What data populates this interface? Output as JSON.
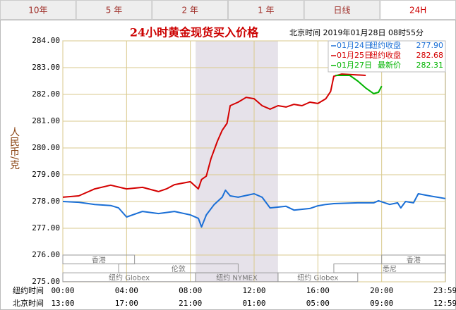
{
  "tabs": [
    "10年",
    "5 年",
    "2 年",
    "1 年",
    "日线",
    "24H"
  ],
  "active_tab": 5,
  "chart_data": {
    "type": "line",
    "title": "24小时黄金现货买入价格",
    "subtitle": "北京时间  2019年01月28日 08时55分",
    "y_label": "人民币/克",
    "x_label": "纽约时间",
    "x2_label": "北京时间",
    "ylim": [
      275,
      284
    ],
    "yticks": [
      {
        "value": 284,
        "label": "284.00"
      },
      {
        "value": 283,
        "label": "283.00"
      },
      {
        "value": 282,
        "label": "282.00"
      },
      {
        "value": 281,
        "label": "281.00"
      },
      {
        "value": 280,
        "label": "280.00"
      },
      {
        "value": 279,
        "label": "279.00"
      },
      {
        "value": 278,
        "label": "278.00"
      },
      {
        "value": 277,
        "label": "277.00"
      },
      {
        "value": 276,
        "label": "276.00"
      },
      {
        "value": 275,
        "label": "275.00"
      }
    ],
    "xlim": [
      0,
      24
    ],
    "xticks": [
      {
        "value": 0,
        "label": "00:00"
      },
      {
        "value": 4,
        "label": "04:00"
      },
      {
        "value": 8,
        "label": "08:00"
      },
      {
        "value": 12,
        "label": "12:00"
      },
      {
        "value": 16,
        "label": "16:00"
      },
      {
        "value": 20,
        "label": "20:00"
      },
      {
        "value": 23.983,
        "label": "23:59"
      }
    ],
    "x2ticks": [
      {
        "value": 0,
        "label": "13:00"
      },
      {
        "value": 4,
        "label": "17:00"
      },
      {
        "value": 8,
        "label": "21:00"
      },
      {
        "value": 12,
        "label": "01:00"
      },
      {
        "value": 16,
        "label": "05:00"
      },
      {
        "value": 20,
        "label": "09:00"
      },
      {
        "value": 23.983,
        "label": "12:59"
      }
    ],
    "grid": true,
    "sessions": [
      [
        {
          "label": "香港",
          "start": 0,
          "end": 4.5
        },
        {
          "label": "香港",
          "start": 20,
          "end": 24
        }
      ],
      [
        {
          "label": "伦敦",
          "start": 3.5,
          "end": 11
        },
        {
          "label": "悉尼",
          "start": 17,
          "end": 24
        }
      ],
      [
        {
          "label": "纽约 Globex",
          "start": 0,
          "end": 8.33
        },
        {
          "label": "纽约 NYMEX",
          "start": 8.33,
          "end": 13.5
        },
        {
          "label": "纽约 Globex",
          "start": 13.5,
          "end": 18.5
        }
      ]
    ],
    "series": [
      {
        "name": "01月24日",
        "note": "纽约收盘",
        "legend_value": {
          "value": 277.9,
          "label": "277.90"
        },
        "color": "#1a6fd6",
        "x": [
          0,
          1,
          2,
          3,
          3.5,
          4,
          5,
          6,
          7,
          8,
          8.5,
          8.7,
          9,
          9.5,
          10,
          10.2,
          10.5,
          11,
          12,
          12.5,
          13,
          14,
          14.5,
          15.5,
          16,
          16.5,
          17,
          18.5,
          19.5,
          19.8,
          20.5,
          21,
          21.2,
          21.5,
          22,
          22.3,
          23,
          24
        ],
        "values": [
          278.0,
          277.97,
          277.89,
          277.85,
          277.76,
          277.42,
          277.63,
          277.55,
          277.63,
          277.5,
          277.37,
          277.05,
          277.5,
          277.89,
          278.16,
          278.42,
          278.21,
          278.16,
          278.29,
          278.16,
          277.76,
          277.82,
          277.68,
          277.74,
          277.84,
          277.89,
          277.92,
          277.95,
          277.95,
          278.03,
          277.89,
          277.95,
          277.76,
          278.0,
          277.95,
          278.29,
          278.21,
          278.11
        ]
      },
      {
        "name": "01月25日",
        "note": "纽约收盘",
        "legend_value": {
          "value": 282.68,
          "label": "282.68"
        },
        "color": "#d40000",
        "x": [
          0,
          1,
          2,
          3,
          4,
          5,
          6,
          6.5,
          7,
          8,
          8.5,
          8.7,
          9,
          9.3,
          9.7,
          10,
          10.3,
          10.5,
          11,
          11.5,
          12,
          12.5,
          13,
          13.5,
          14,
          14.5,
          15,
          15.5,
          16,
          16.5,
          16.8,
          17,
          17.5,
          19
        ],
        "values": [
          278.16,
          278.21,
          278.47,
          278.61,
          278.47,
          278.53,
          278.37,
          278.47,
          278.63,
          278.74,
          278.47,
          278.82,
          278.95,
          279.61,
          280.26,
          280.66,
          280.92,
          281.58,
          281.71,
          281.89,
          281.84,
          281.58,
          281.45,
          281.58,
          281.53,
          281.63,
          281.58,
          281.71,
          281.66,
          281.84,
          282.11,
          282.68,
          282.76,
          282.71
        ]
      },
      {
        "name": "01月27日",
        "note": "最新价",
        "legend_value": {
          "value": 282.31,
          "label": "282.31"
        },
        "color": "#00b400",
        "x": [
          17.1,
          18,
          18.5,
          19,
          19.5,
          19.8,
          20
        ],
        "values": [
          282.71,
          282.71,
          282.5,
          282.24,
          282.03,
          282.08,
          282.31
        ]
      }
    ]
  }
}
